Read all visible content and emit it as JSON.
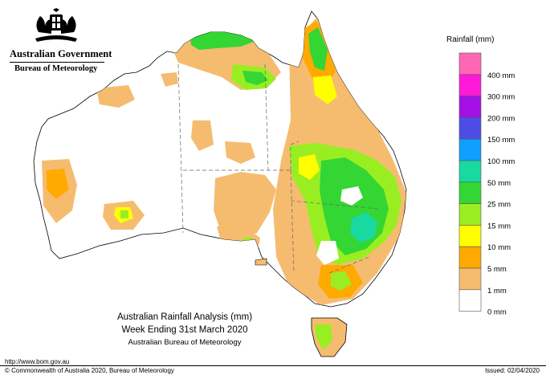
{
  "header": {
    "government": "Australian Government",
    "agency": "Bureau of Meteorology"
  },
  "map": {
    "title_line1": "Australian Rainfall Analysis (mm)",
    "title_line2": "Week Ending 31st March 2020",
    "subtitle": "Australian Bureau of Meteorology"
  },
  "legend": {
    "title": "Rainfall (mm)",
    "items": [
      {
        "label": "",
        "color": "#ff66b3"
      },
      {
        "label": "400 mm",
        "color": "#ff19d8"
      },
      {
        "label": "300 mm",
        "color": "#a30fe6"
      },
      {
        "label": "200 mm",
        "color": "#4d4de6"
      },
      {
        "label": "150 mm",
        "color": "#0f9fff"
      },
      {
        "label": "100 mm",
        "color": "#1ad9a0"
      },
      {
        "label": "50 mm",
        "color": "#33d633"
      },
      {
        "label": "25 mm",
        "color": "#99ee22"
      },
      {
        "label": "15 mm",
        "color": "#ffff00"
      },
      {
        "label": "10 mm",
        "color": "#ffaa00"
      },
      {
        "label": "5 mm",
        "color": "#f5bc70"
      },
      {
        "label": "1 mm",
        "color": "#ffffff"
      },
      {
        "label": "0 mm",
        "color": ""
      }
    ]
  },
  "footer": {
    "url": "http://www.bom.gov.au",
    "copyright": "© Commonwealth of Australia 2020, Bureau of Meteorology",
    "issued": "Issued: 02/04/2020"
  }
}
